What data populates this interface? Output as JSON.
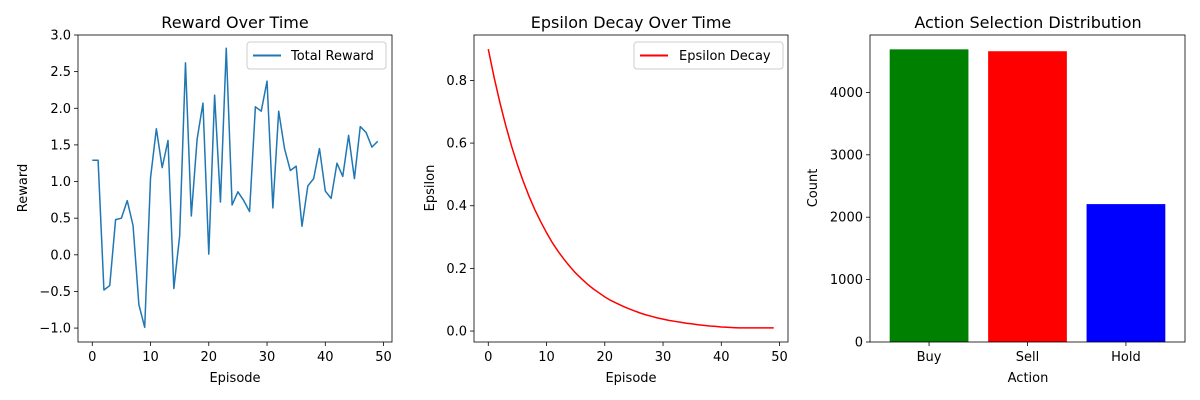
{
  "chart_data": [
    {
      "type": "line",
      "title": "Reward Over Time",
      "xlabel": "Episode",
      "ylabel": "Reward",
      "xlim": [
        -2.45,
        51.45
      ],
      "ylim": [
        -1.19,
        3.0
      ],
      "xticks": [
        0,
        10,
        20,
        30,
        40,
        50
      ],
      "yticks": [
        -1.0,
        -0.5,
        0.0,
        0.5,
        1.0,
        1.5,
        2.0,
        2.5,
        3.0
      ],
      "ytick_labels": [
        "−1.0",
        "−0.5",
        "0.0",
        "0.5",
        "1.0",
        "1.5",
        "2.0",
        "2.5",
        "3.0"
      ],
      "grid": false,
      "legend_position": "upper right",
      "series": [
        {
          "name": "Total Reward",
          "color": "#1f77b4",
          "x": [
            0,
            1,
            2,
            3,
            4,
            5,
            6,
            7,
            8,
            9,
            10,
            11,
            12,
            13,
            14,
            15,
            16,
            17,
            18,
            19,
            20,
            21,
            22,
            23,
            24,
            25,
            26,
            27,
            28,
            29,
            30,
            31,
            32,
            33,
            34,
            35,
            36,
            37,
            38,
            39,
            40,
            41,
            42,
            43,
            44,
            45,
            46,
            47,
            48,
            49
          ],
          "values": [
            1.29,
            1.29,
            -0.48,
            -0.42,
            0.48,
            0.5,
            0.74,
            0.4,
            -0.68,
            -0.99,
            1.05,
            1.72,
            1.19,
            1.56,
            -0.46,
            0.26,
            2.62,
            0.53,
            1.58,
            2.07,
            0.01,
            2.18,
            0.72,
            2.82,
            0.68,
            0.86,
            0.74,
            0.59,
            2.02,
            1.96,
            2.37,
            0.64,
            1.96,
            1.45,
            1.15,
            1.21,
            0.39,
            0.94,
            1.04,
            1.45,
            0.87,
            0.77,
            1.25,
            1.07,
            1.63,
            1.04,
            1.75,
            1.67,
            1.47,
            1.55
          ]
        }
      ]
    },
    {
      "type": "line",
      "title": "Epsilon Decay Over Time",
      "xlabel": "Episode",
      "ylabel": "Epsilon",
      "xlim": [
        -2.45,
        51.45
      ],
      "ylim": [
        -0.035,
        0.945
      ],
      "xticks": [
        0,
        10,
        20,
        30,
        40,
        50
      ],
      "yticks": [
        0.0,
        0.2,
        0.4,
        0.6,
        0.8
      ],
      "ytick_labels": [
        "0.0",
        "0.2",
        "0.4",
        "0.6",
        "0.8"
      ],
      "grid": false,
      "legend_position": "upper right",
      "decay": {
        "start": 0.9,
        "rate": 0.9,
        "min": 0.01
      },
      "series": [
        {
          "name": "Epsilon Decay",
          "color": "#ff0000",
          "x": [
            0,
            1,
            2,
            3,
            4,
            5,
            6,
            7,
            8,
            9,
            10,
            11,
            12,
            13,
            14,
            15,
            16,
            17,
            18,
            19,
            20,
            21,
            22,
            23,
            24,
            25,
            26,
            27,
            28,
            29,
            30,
            31,
            32,
            33,
            34,
            35,
            36,
            37,
            38,
            39,
            40,
            41,
            42,
            43,
            44,
            45,
            46,
            47,
            48,
            49
          ],
          "values": [
            0.9,
            0.81,
            0.729,
            0.656,
            0.59,
            0.531,
            0.478,
            0.43,
            0.387,
            0.349,
            0.314,
            0.282,
            0.254,
            0.229,
            0.206,
            0.185,
            0.167,
            0.15,
            0.135,
            0.122,
            0.109,
            0.098,
            0.089,
            0.08,
            0.072,
            0.065,
            0.058,
            0.052,
            0.047,
            0.042,
            0.038,
            0.034,
            0.031,
            0.028,
            0.025,
            0.023,
            0.02,
            0.018,
            0.016,
            0.015,
            0.013,
            0.012,
            0.011,
            0.01,
            0.01,
            0.01,
            0.01,
            0.01,
            0.01,
            0.01
          ]
        }
      ]
    },
    {
      "type": "bar",
      "title": "Action Selection Distribution",
      "xlabel": "Action",
      "ylabel": "Count",
      "categories": [
        "Buy",
        "Sell",
        "Hold"
      ],
      "values": [
        4690,
        4660,
        2210
      ],
      "colors": [
        "#008000",
        "#ff0000",
        "#0000ff"
      ],
      "ylim": [
        0,
        4920
      ],
      "yticks": [
        0,
        1000,
        2000,
        3000,
        4000
      ],
      "ytick_labels": [
        "0",
        "1000",
        "2000",
        "3000",
        "4000"
      ],
      "grid": false
    }
  ]
}
